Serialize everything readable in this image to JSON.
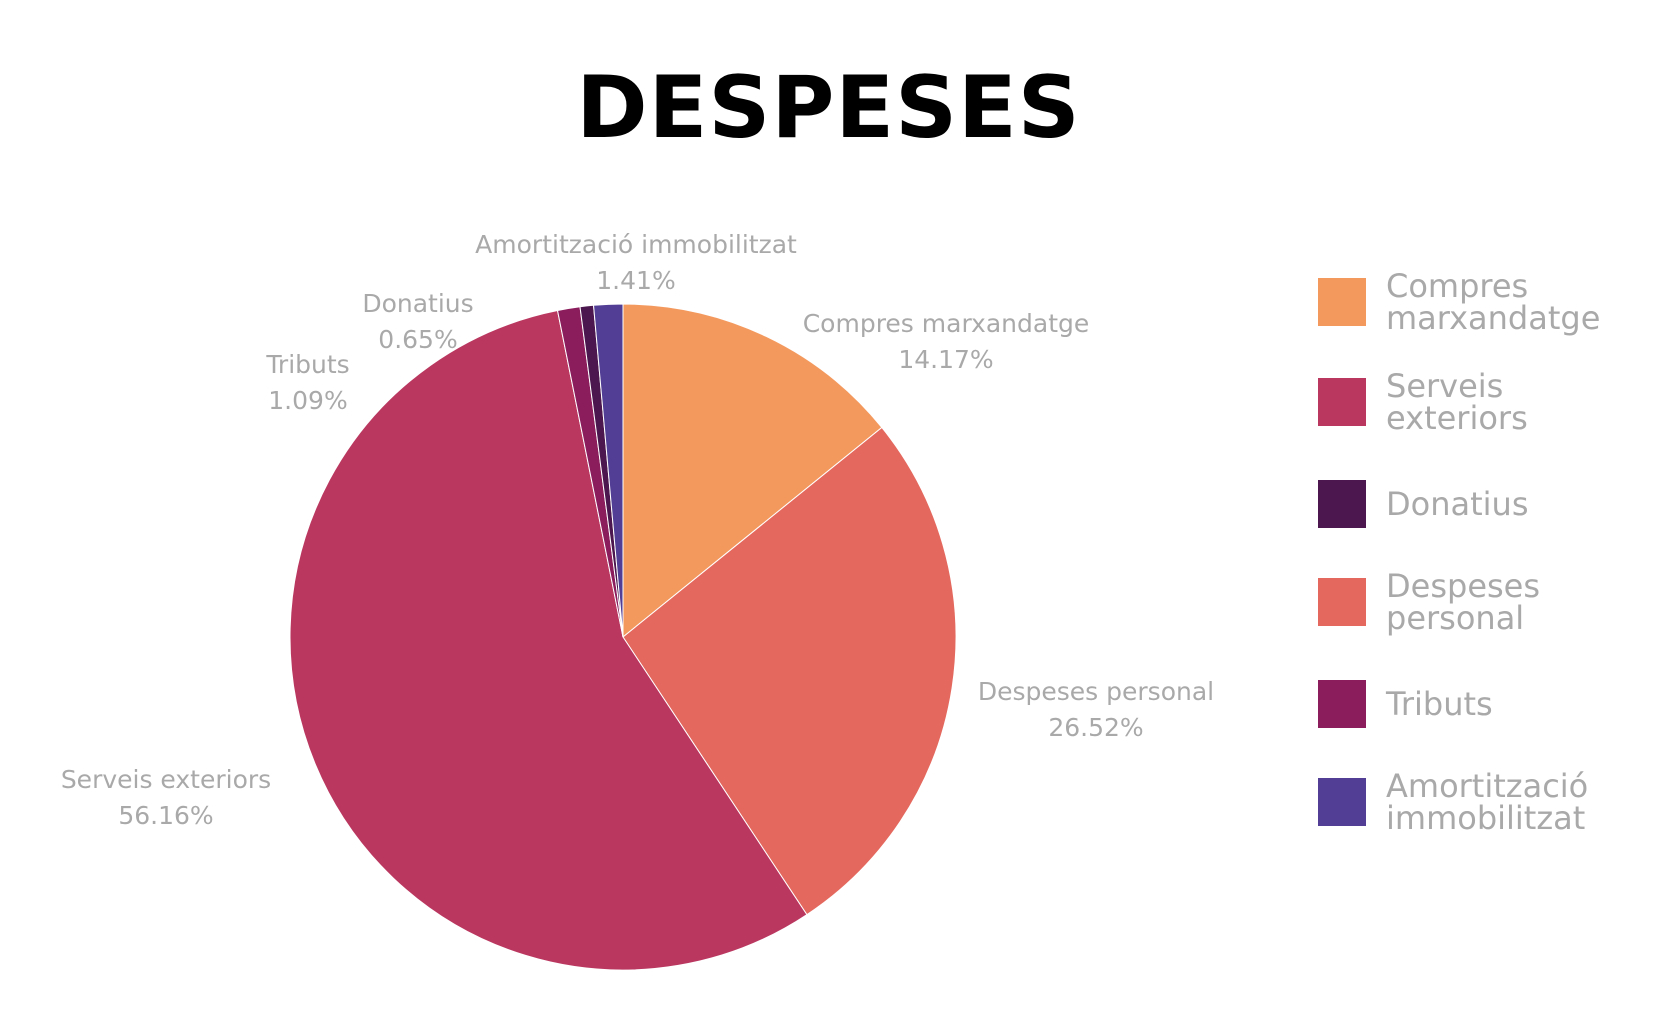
{
  "chart_data": {
    "type": "pie",
    "title": "DESPESES",
    "slices": [
      {
        "name": "Compres marxandatge",
        "value": 14.17,
        "label": "14.17%",
        "color": "#F4995E"
      },
      {
        "name": "Despeses personal",
        "value": 26.52,
        "label": "26.52%",
        "color": "#E4685D"
      },
      {
        "name": "Serveis exteriors",
        "value": 56.16,
        "label": "56.16%",
        "color": "#BA3760"
      },
      {
        "name": "Tributs",
        "value": 1.09,
        "label": "1.09%",
        "color": "#8B1D5D"
      },
      {
        "name": "Donatius",
        "value": 0.65,
        "label": "0.65%",
        "color": "#4B174E"
      },
      {
        "name": "Amortització immobilitzat",
        "value": 1.41,
        "label": "1.41%",
        "color": "#523E94"
      }
    ],
    "legend": [
      {
        "label": "Compres marxandatge",
        "color": "#F4995E"
      },
      {
        "label": "Serveis exteriors",
        "color": "#BA3760"
      },
      {
        "label": "Donatius",
        "color": "#4B174E"
      },
      {
        "label": "Despeses personal",
        "color": "#E4685D"
      },
      {
        "label": "Tributs",
        "color": "#8B1D5D"
      },
      {
        "label": "Amortització immobilitzat",
        "color": "#523E94"
      }
    ],
    "legend_position": "right"
  }
}
